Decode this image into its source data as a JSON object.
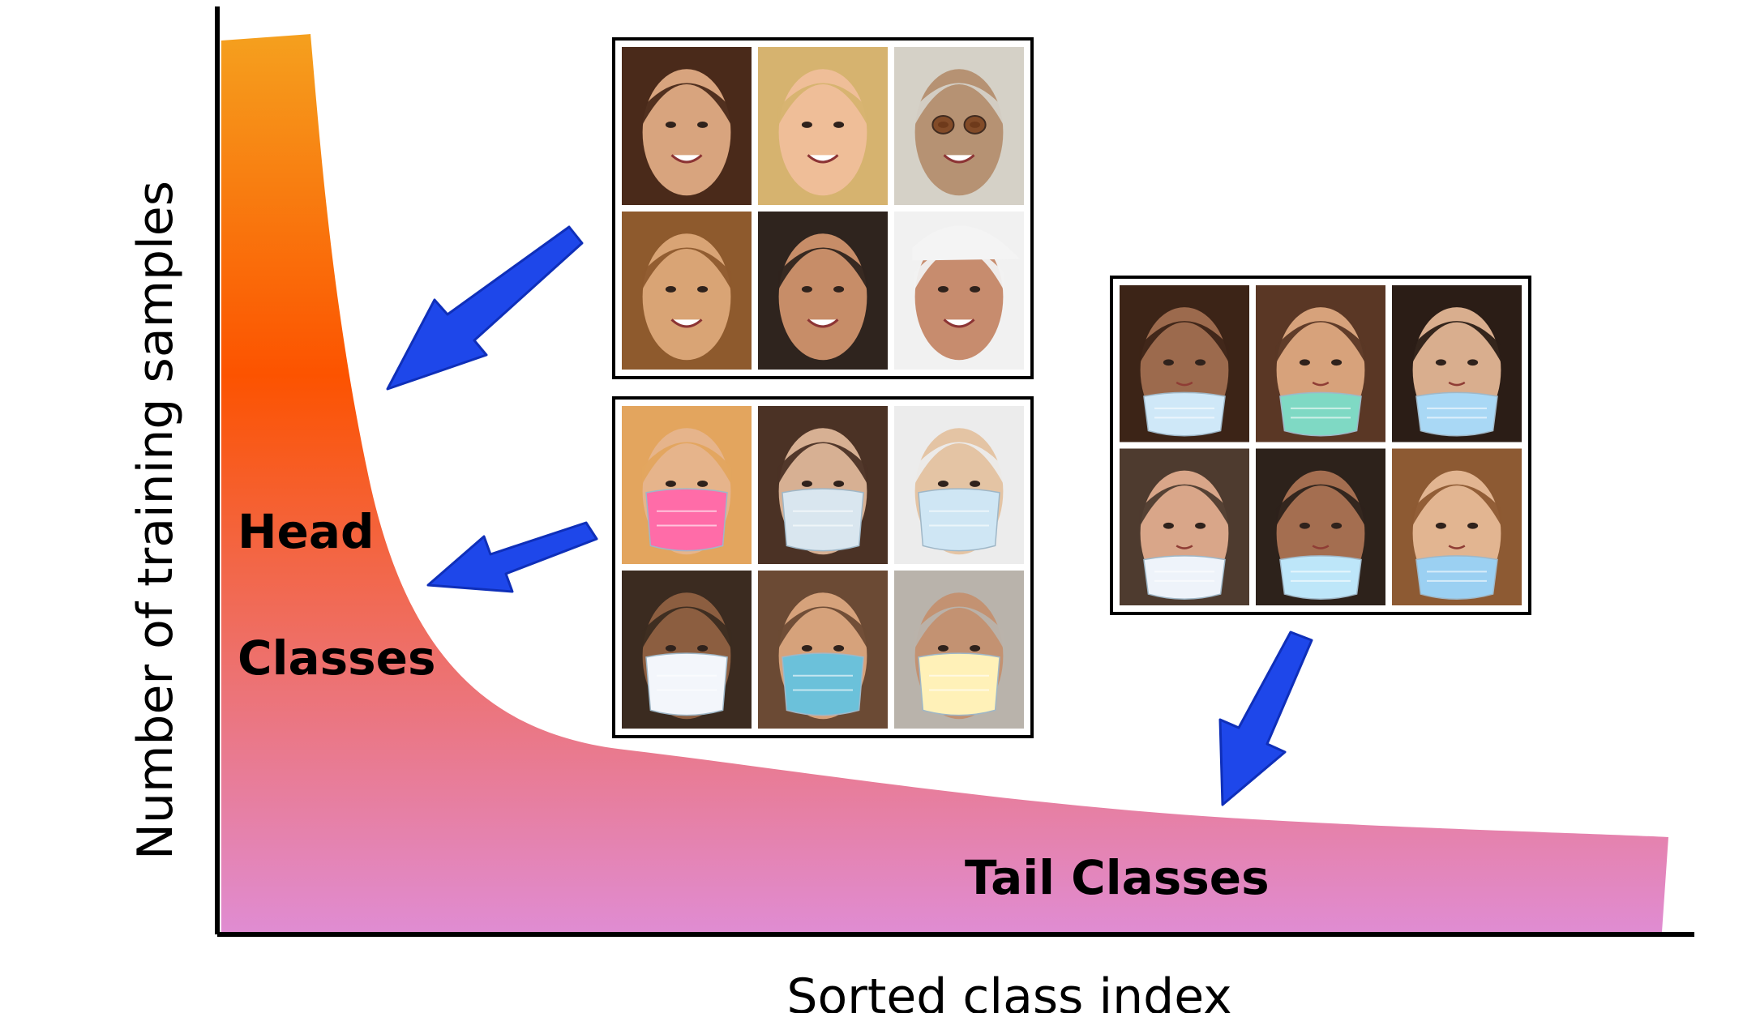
{
  "diagram": {
    "labels": {
      "head_line1": "Head",
      "head_line2": "Classes",
      "tail": "Tail Classes",
      "x_axis": "Sorted class index",
      "y_axis": "Number of training samples"
    },
    "colors": {
      "gradient_top": "#f5a01e",
      "gradient_mid": "#fc5300",
      "gradient_bottom": "#e08cd2",
      "arrow_fill": "#1e47ea",
      "arrow_edge": "#0f2fb9",
      "axis": "#000000",
      "frame_border": "#000000"
    },
    "photo_grids": [
      {
        "name": "unmasked-faces-grid",
        "rows": 2,
        "cols": 3,
        "subject": "unmasked faces",
        "tiles": [
          {
            "tone": "#d8a47e",
            "hair": "#4a2a1a",
            "mask": null
          },
          {
            "tone": "#efbe98",
            "hair": "#d6b36f",
            "mask": null
          },
          {
            "tone": "#b69273",
            "hair": "#d5d1c7",
            "mask": null,
            "glasses": true
          },
          {
            "tone": "#d9a475",
            "hair": "#8e5a2d",
            "mask": null
          },
          {
            "tone": "#c78d68",
            "hair": "#2f241e",
            "mask": null
          },
          {
            "tone": "#c78c6e",
            "hair": "#f1f1f1",
            "mask": null,
            "cap": true
          }
        ]
      },
      {
        "name": "masked-faces-grid",
        "rows": 2,
        "cols": 3,
        "subject": "faces wearing masks",
        "tiles": [
          {
            "tone": "#e6b48b",
            "hair": "#e3a55e",
            "mask": "#ff6ca8"
          },
          {
            "tone": "#d7b093",
            "hair": "#4b3225",
            "mask": "#d9e6ef"
          },
          {
            "tone": "#e4c4a4",
            "hair": "#ececec",
            "mask": "#cfe6f4"
          },
          {
            "tone": "#8c5e40",
            "hair": "#3b2b20",
            "mask": "#f3f6fb"
          },
          {
            "tone": "#d6a27b",
            "hair": "#6b4a34",
            "mask": "#6bc1da"
          },
          {
            "tone": "#c39272",
            "hair": "#b9b3ab",
            "mask": "#fff1b8"
          }
        ]
      },
      {
        "name": "improperly-masked-faces-grid",
        "rows": 2,
        "cols": 3,
        "subject": "faces with masks pulled below nose",
        "tiles": [
          {
            "tone": "#9c6a4d",
            "hair": "#3c2417",
            "mask": "#cfe8f8",
            "low_mask": true
          },
          {
            "tone": "#d7a27b",
            "hair": "#5a3725",
            "mask": "#7fd9c4",
            "low_mask": true
          },
          {
            "tone": "#d9ae8e",
            "hair": "#2b1d16",
            "mask": "#a9d8f5",
            "low_mask": true
          },
          {
            "tone": "#d9a689",
            "hair": "#4e3b2f",
            "mask": "#eef3fa",
            "low_mask": true
          },
          {
            "tone": "#a46e50",
            "hair": "#2d221b",
            "mask": "#bde6f9",
            "low_mask": true
          },
          {
            "tone": "#e2b591",
            "hair": "#8d5a33",
            "mask": "#9bd0f2",
            "low_mask": true
          }
        ]
      }
    ],
    "arrows": [
      {
        "name": "arrow-to-head-upper"
      },
      {
        "name": "arrow-to-head-lower"
      },
      {
        "name": "arrow-to-tail"
      }
    ]
  }
}
